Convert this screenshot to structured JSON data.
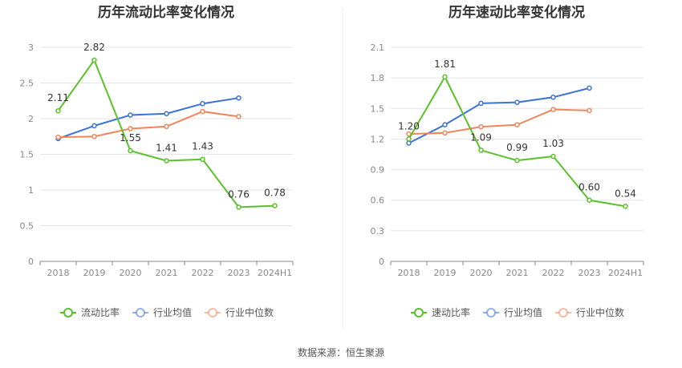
{
  "source_text": "数据来源：恒生聚源",
  "chart_data": [
    {
      "type": "line",
      "title": "历年流动比率变化情况",
      "categories": [
        "2018",
        "2019",
        "2020",
        "2021",
        "2022",
        "2023",
        "2024H1"
      ],
      "ylim": [
        0,
        3
      ],
      "yticks": [
        "0",
        "0.5",
        "1",
        "1.5",
        "2",
        "2.5",
        "3"
      ],
      "ytick_values": [
        0,
        0.5,
        1,
        1.5,
        2,
        2.5,
        3
      ],
      "grid": true,
      "legend_position": "bottom",
      "series": [
        {
          "name": "流动比率",
          "color": "#5ac229",
          "values": [
            2.11,
            2.82,
            1.55,
            1.41,
            1.43,
            0.76,
            0.78
          ],
          "labels": [
            "2.11",
            "2.82",
            "1.55",
            "1.41",
            "1.43",
            "0.76",
            "0.78"
          ]
        },
        {
          "name": "行业均值",
          "color": "#3a72d8",
          "values": [
            1.72,
            1.9,
            2.05,
            2.07,
            2.21,
            2.29,
            null
          ]
        },
        {
          "name": "行业中位数",
          "color": "#f0855a",
          "values": [
            1.74,
            1.75,
            1.86,
            1.89,
            2.1,
            2.03,
            null
          ]
        }
      ]
    },
    {
      "type": "line",
      "title": "历年速动比率变化情况",
      "categories": [
        "2018",
        "2019",
        "2020",
        "2021",
        "2022",
        "2023",
        "2024H1"
      ],
      "ylim": [
        0,
        2.1
      ],
      "yticks": [
        "0",
        "0.3",
        "0.6",
        "0.9",
        "1.2",
        "1.5",
        "1.8",
        "2.1"
      ],
      "ytick_values": [
        0,
        0.3,
        0.6,
        0.9,
        1.2,
        1.5,
        1.8,
        2.1
      ],
      "grid": true,
      "legend_position": "bottom",
      "series": [
        {
          "name": "速动比率",
          "color": "#5ac229",
          "values": [
            1.2,
            1.81,
            1.09,
            0.99,
            1.03,
            0.6,
            0.54
          ],
          "labels": [
            "1.20",
            "1.81",
            "1.09",
            "0.99",
            "1.03",
            "0.60",
            "0.54"
          ]
        },
        {
          "name": "行业均值",
          "color": "#3a72d8",
          "values": [
            1.16,
            1.34,
            1.55,
            1.56,
            1.61,
            1.7,
            null
          ]
        },
        {
          "name": "行业中位数",
          "color": "#f0855a",
          "values": [
            1.25,
            1.26,
            1.32,
            1.34,
            1.49,
            1.48,
            null
          ]
        }
      ]
    }
  ]
}
